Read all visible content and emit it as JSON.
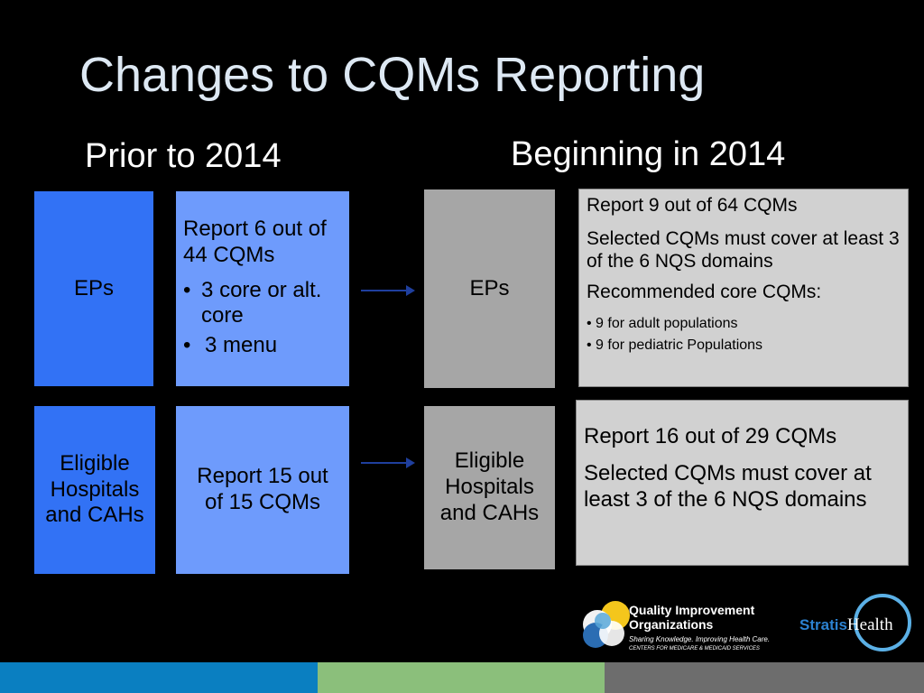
{
  "slide": {
    "title": "Changes to CQMs Reporting",
    "left_heading": "Prior to 2014",
    "right_heading": "Beginning in 2014"
  },
  "prior": {
    "eps": {
      "label": "EPs",
      "report": "Report 6 out of 44 CQMs",
      "bullets": [
        "3 core or alt. core",
        "3 menu"
      ]
    },
    "hospitals": {
      "label": "Eligible Hospitals and CAHs",
      "report": "Report 15 out of 15 CQMs"
    }
  },
  "beginning": {
    "eps": {
      "label": "EPs",
      "line1": "Report 9 out of 64 CQMs",
      "line2": "Selected CQMs must cover at least 3 of the 6 NQS domains",
      "line3": "Recommended core CQMs:",
      "bullets": [
        "9 for adult populations",
        "9 for pediatric Populations"
      ]
    },
    "hospitals": {
      "label": "Eligible Hospitals and CAHs",
      "line1": "Report 16 out of 29 CQMs",
      "line2": "Selected CQMs must cover at least 3 of the 6 NQS domains"
    }
  },
  "logos": {
    "qio_name_line1": "Quality Improvement",
    "qio_name_line2": "Organizations",
    "qio_tagline": "Sharing Knowledge. Improving Health Care.",
    "qio_sub": "CENTERS FOR MEDICARE & MEDICAID SERVICES",
    "stratis_part1": "Stratis",
    "stratis_part2": "Health"
  },
  "colors": {
    "band_blue": "#0a7fc1",
    "band_green": "#8bbf7b",
    "band_grey": "#6d6d6d"
  }
}
